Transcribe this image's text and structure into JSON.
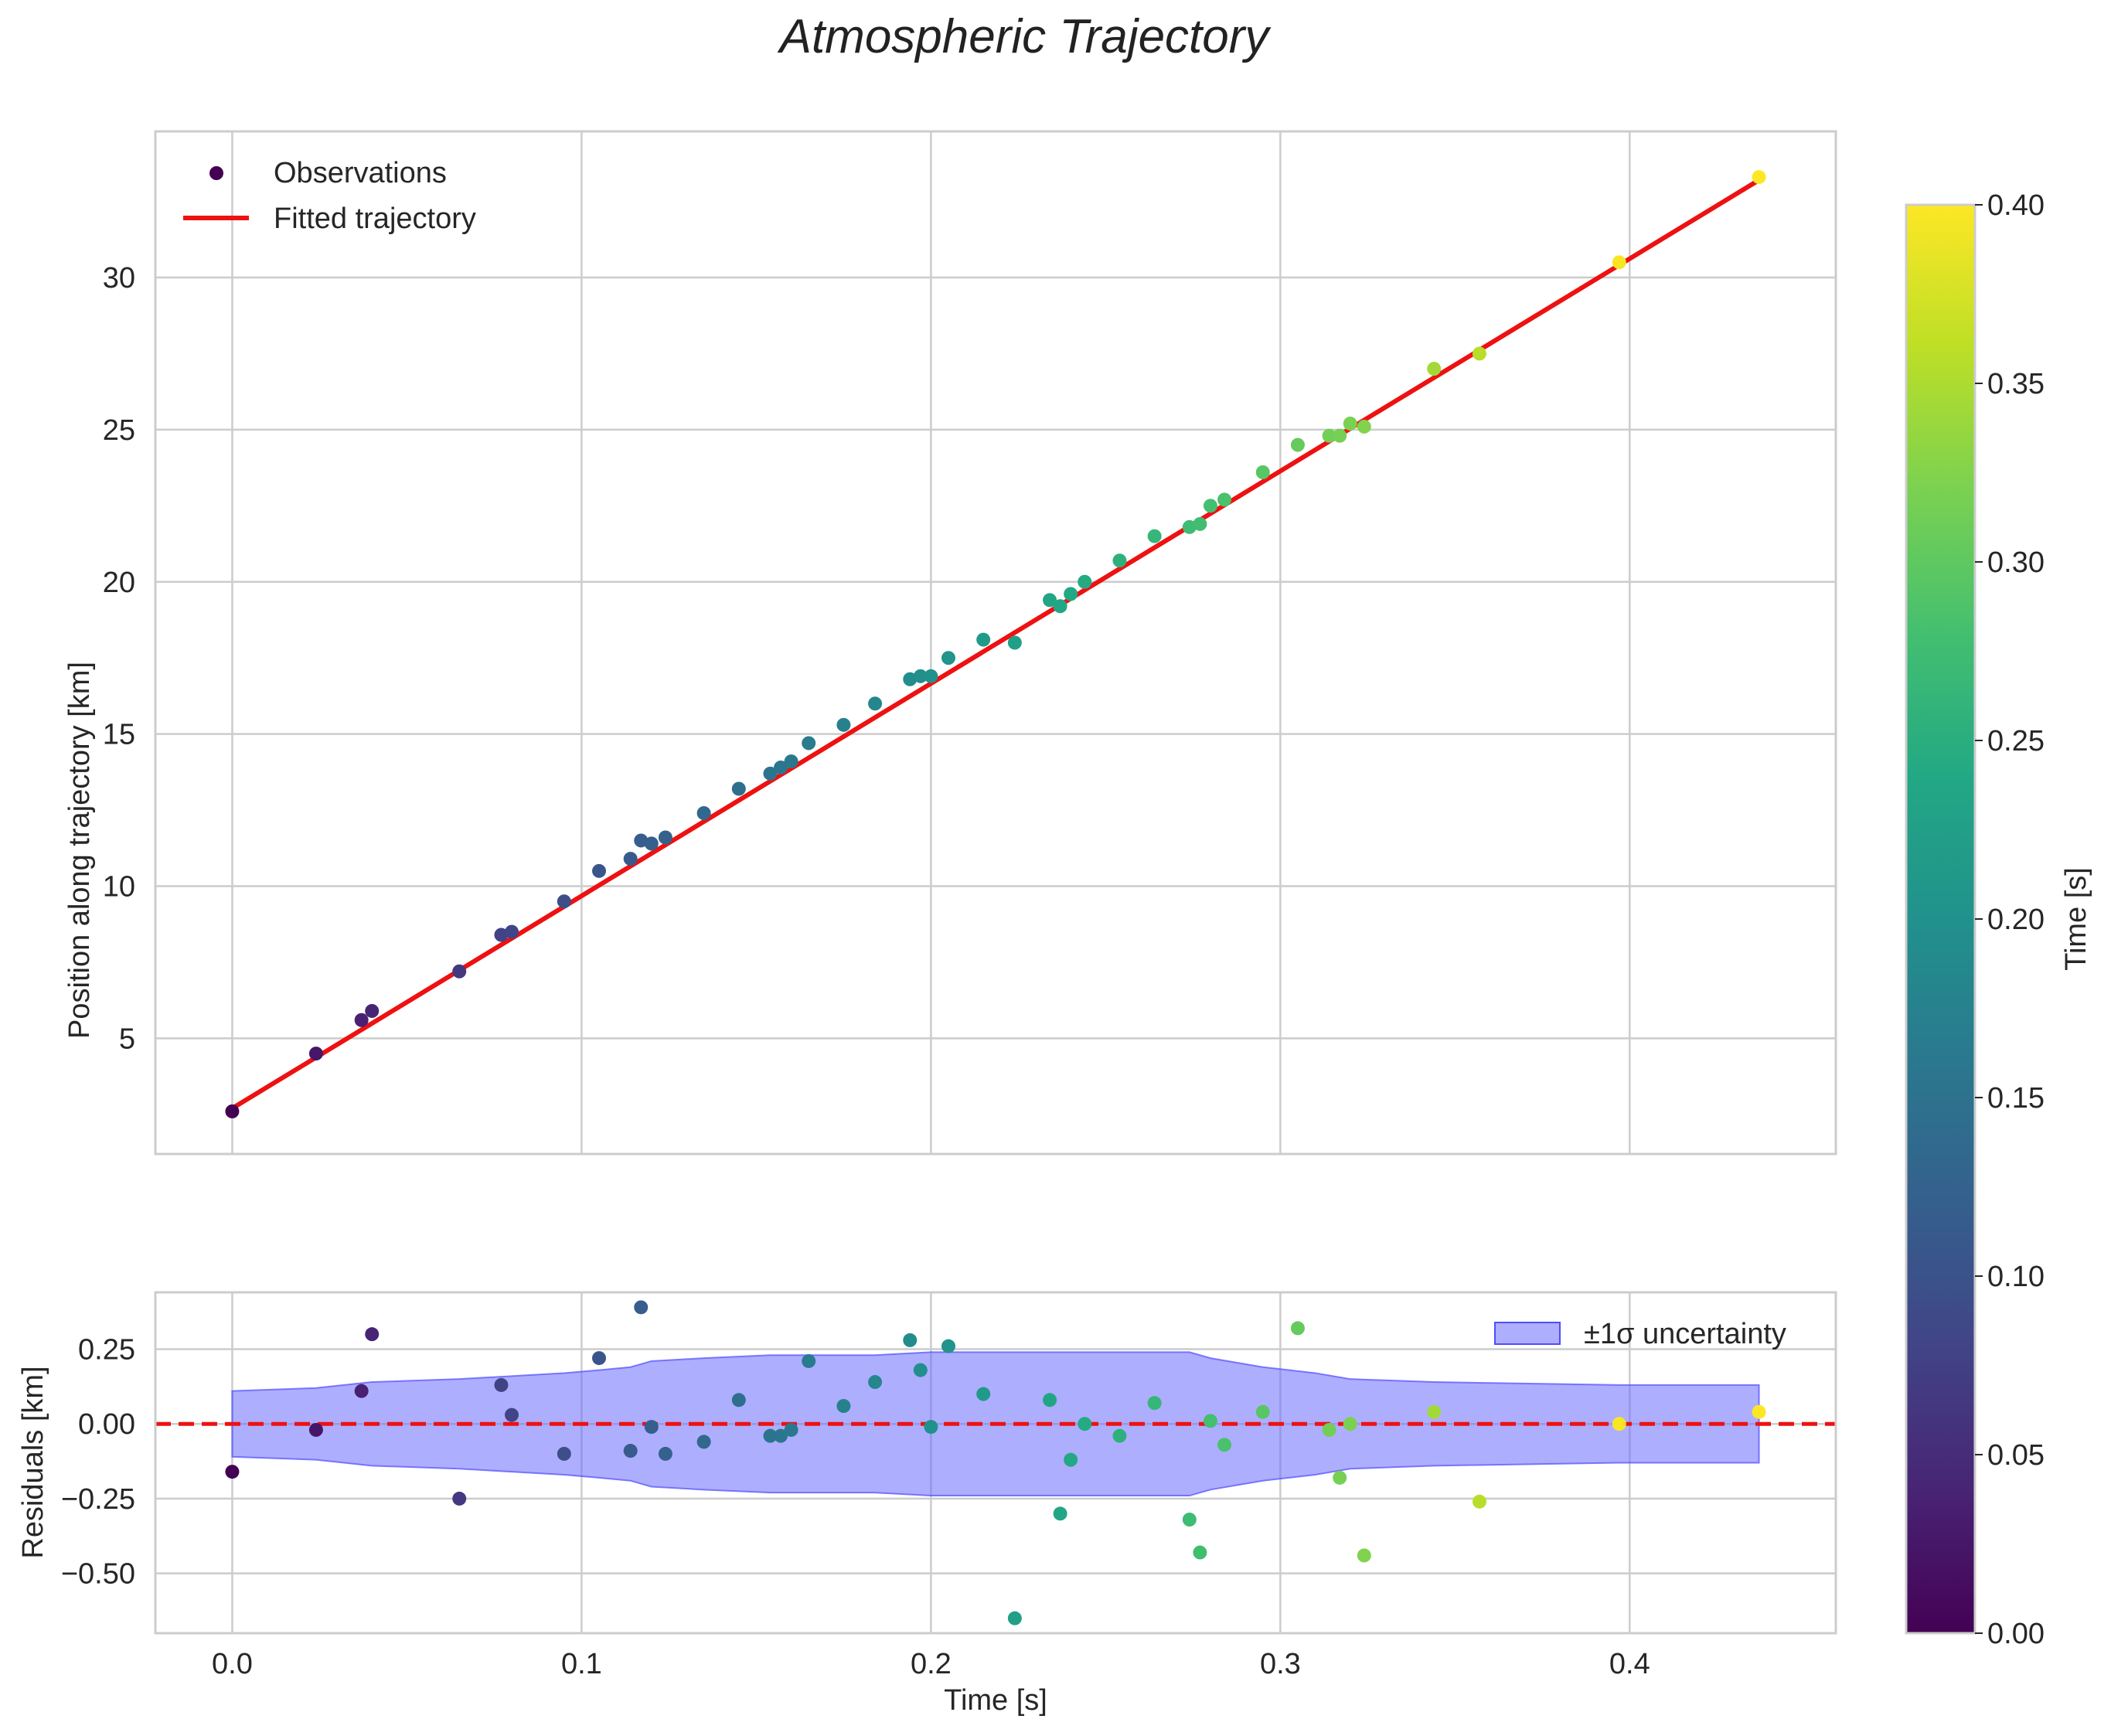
{
  "chart_data": [
    {
      "type": "scatter",
      "panel": "main",
      "title": "Atmospheric Trajectory",
      "xlabel": "",
      "ylabel": "Position along trajectory [km]",
      "xlim": [
        -0.022,
        0.459
      ],
      "ylim": [
        1.2,
        34.8
      ],
      "xticks": [
        "0.0",
        "0.1",
        "0.2",
        "0.3",
        "0.4"
      ],
      "yticks": [
        "5",
        "10",
        "15",
        "20",
        "25",
        "30"
      ],
      "grid": true,
      "legend_position": "top-left",
      "legend": [
        "Observations",
        "Fitted trajectory"
      ],
      "fit_line": {
        "name": "Fitted trajectory",
        "color": "#ee1111",
        "x": [
          0.0,
          0.437
        ],
        "y": [
          2.7,
          33.2
        ]
      },
      "observations": {
        "name": "Observations",
        "colorscale": "viridis",
        "x": [
          0.0,
          0.024,
          0.037,
          0.04,
          0.065,
          0.077,
          0.08,
          0.095,
          0.105,
          0.114,
          0.117,
          0.12,
          0.124,
          0.135,
          0.145,
          0.154,
          0.157,
          0.16,
          0.165,
          0.175,
          0.184,
          0.194,
          0.197,
          0.2,
          0.205,
          0.215,
          0.224,
          0.234,
          0.237,
          0.24,
          0.244,
          0.254,
          0.264,
          0.274,
          0.277,
          0.28,
          0.284,
          0.295,
          0.305,
          0.314,
          0.317,
          0.32,
          0.324,
          0.344,
          0.357,
          0.397,
          0.437
        ],
        "y": [
          2.6,
          4.5,
          5.6,
          5.9,
          7.2,
          8.4,
          8.5,
          9.5,
          10.5,
          10.9,
          11.5,
          11.4,
          11.6,
          12.4,
          13.2,
          13.7,
          13.9,
          14.1,
          14.7,
          15.3,
          16.0,
          16.8,
          16.9,
          16.9,
          17.5,
          18.1,
          18.0,
          19.4,
          19.2,
          19.6,
          20.0,
          20.7,
          21.5,
          21.8,
          21.9,
          22.5,
          22.7,
          23.6,
          24.5,
          24.8,
          24.8,
          25.2,
          25.1,
          27.0,
          27.5,
          30.5,
          33.3
        ]
      }
    },
    {
      "type": "scatter",
      "panel": "residuals",
      "xlabel": "Time [s]",
      "ylabel": "Residuals [km]",
      "xlim": [
        -0.022,
        0.459
      ],
      "ylim": [
        -0.7,
        0.44
      ],
      "xticks": [
        "0.0",
        "0.1",
        "0.2",
        "0.3",
        "0.4"
      ],
      "yticks": [
        "0.25",
        "0.00",
        "−0.25",
        "−0.50"
      ],
      "grid": true,
      "legend_position": "top-right",
      "legend": [
        "±1σ uncertainty"
      ],
      "zero_line": {
        "value": 0.0,
        "color": "#ee1111",
        "style": "dashed"
      },
      "band": {
        "name": "±1σ uncertainty",
        "color": "#6b6bff",
        "x": [
          0.0,
          0.024,
          0.04,
          0.065,
          0.08,
          0.095,
          0.105,
          0.114,
          0.12,
          0.135,
          0.154,
          0.165,
          0.184,
          0.2,
          0.224,
          0.244,
          0.264,
          0.274,
          0.28,
          0.295,
          0.31,
          0.32,
          0.344,
          0.397,
          0.437
        ],
        "upper": [
          0.11,
          0.12,
          0.14,
          0.15,
          0.16,
          0.17,
          0.18,
          0.19,
          0.21,
          0.22,
          0.23,
          0.23,
          0.23,
          0.24,
          0.24,
          0.24,
          0.24,
          0.24,
          0.22,
          0.19,
          0.17,
          0.15,
          0.14,
          0.13,
          0.13
        ],
        "lower": [
          -0.11,
          -0.12,
          -0.14,
          -0.15,
          -0.16,
          -0.17,
          -0.18,
          -0.19,
          -0.21,
          -0.22,
          -0.23,
          -0.23,
          -0.23,
          -0.24,
          -0.24,
          -0.24,
          -0.24,
          -0.24,
          -0.22,
          -0.19,
          -0.17,
          -0.15,
          -0.14,
          -0.13,
          -0.13
        ]
      },
      "residuals": {
        "x": [
          0.0,
          0.024,
          0.037,
          0.04,
          0.065,
          0.077,
          0.08,
          0.095,
          0.105,
          0.114,
          0.117,
          0.12,
          0.124,
          0.135,
          0.145,
          0.154,
          0.157,
          0.16,
          0.165,
          0.175,
          0.184,
          0.194,
          0.197,
          0.2,
          0.205,
          0.215,
          0.224,
          0.234,
          0.237,
          0.24,
          0.244,
          0.254,
          0.264,
          0.274,
          0.277,
          0.28,
          0.284,
          0.295,
          0.305,
          0.314,
          0.317,
          0.32,
          0.324,
          0.344,
          0.357,
          0.397,
          0.437
        ],
        "y": [
          -0.16,
          -0.02,
          0.11,
          0.3,
          -0.25,
          0.13,
          0.03,
          -0.1,
          0.22,
          -0.09,
          0.39,
          -0.01,
          -0.1,
          -0.06,
          0.08,
          -0.04,
          -0.04,
          -0.02,
          0.21,
          0.06,
          0.14,
          0.28,
          0.18,
          -0.01,
          0.26,
          0.1,
          -0.65,
          0.08,
          -0.3,
          -0.12,
          0.0,
          -0.04,
          0.07,
          -0.32,
          -0.43,
          0.01,
          -0.07,
          0.04,
          0.32,
          -0.02,
          -0.18,
          0.0,
          -0.44,
          0.04,
          -0.26,
          0.0,
          0.04
        ]
      }
    },
    {
      "type": "colorbar",
      "label": "Time [s]",
      "colorscale": "viridis",
      "range": [
        0.0,
        0.4
      ],
      "ticks": [
        "0.00",
        "0.05",
        "0.10",
        "0.15",
        "0.20",
        "0.25",
        "0.30",
        "0.35",
        "0.40"
      ]
    }
  ]
}
